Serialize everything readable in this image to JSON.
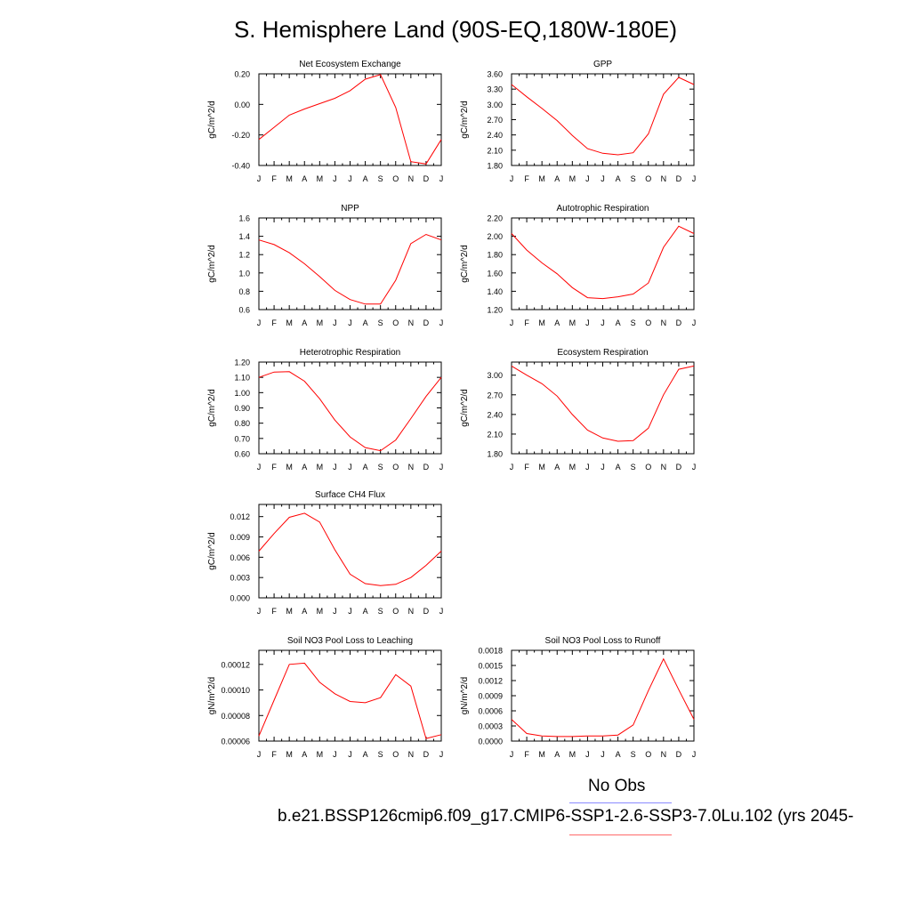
{
  "title": "S. Hemisphere Land (90S-EQ,180W-180E)",
  "legend": {
    "obs_label": "No Obs",
    "case_label": "b.e21.BSSP126cmip6.f09_g17.CMIP6-SSP1-2.6-SSP3-7.0Lu.102 (yrs 2045-",
    "obs_color": "#8a8aff",
    "model_color": "#ff6a6a"
  },
  "colors": {
    "line": "#ff0000",
    "axis": "#000000"
  },
  "chart_data": [
    {
      "type": "line",
      "title": "Net Ecosystem Exchange",
      "ylabel": "gC/m^2/d",
      "categories": [
        "J",
        "F",
        "M",
        "A",
        "M",
        "J",
        "J",
        "A",
        "S",
        "O",
        "N",
        "D",
        "J"
      ],
      "ylim": [
        -0.4,
        0.2
      ],
      "yticks": [
        "0.20",
        "0.00",
        "-0.20",
        "-0.40"
      ],
      "ytick_values": [
        0.2,
        0.0,
        -0.2,
        -0.4
      ],
      "series": [
        {
          "values": [
            -0.23,
            -0.15,
            -0.07,
            -0.03,
            0.005,
            0.04,
            0.09,
            0.165,
            0.195,
            -0.02,
            -0.375,
            -0.39,
            -0.23
          ]
        }
      ]
    },
    {
      "type": "line",
      "title": "GPP",
      "ylabel": "gC/m^2/d",
      "categories": [
        "J",
        "F",
        "M",
        "A",
        "M",
        "J",
        "J",
        "A",
        "S",
        "O",
        "N",
        "D",
        "J"
      ],
      "ylim": [
        1.8,
        3.6
      ],
      "yticks": [
        "3.60",
        "3.30",
        "3.00",
        "2.70",
        "2.40",
        "2.10",
        "1.80"
      ],
      "ytick_values": [
        3.6,
        3.3,
        3.0,
        2.7,
        2.4,
        2.1,
        1.8
      ],
      "series": [
        {
          "values": [
            3.39,
            3.15,
            2.92,
            2.68,
            2.39,
            2.13,
            2.04,
            2.01,
            2.05,
            2.42,
            3.2,
            3.53,
            3.39
          ]
        }
      ]
    },
    {
      "type": "line",
      "title": "NPP",
      "ylabel": "gC/m^2/d",
      "categories": [
        "J",
        "F",
        "M",
        "A",
        "M",
        "J",
        "J",
        "A",
        "S",
        "O",
        "N",
        "D",
        "J"
      ],
      "ylim": [
        0.6,
        1.6
      ],
      "yticks": [
        "1.6",
        "1.4",
        "1.2",
        "1.0",
        "0.8",
        "0.6"
      ],
      "ytick_values": [
        1.6,
        1.4,
        1.2,
        1.0,
        0.8,
        0.6
      ],
      "series": [
        {
          "values": [
            1.36,
            1.31,
            1.22,
            1.1,
            0.96,
            0.81,
            0.71,
            0.66,
            0.66,
            0.92,
            1.32,
            1.42,
            1.36
          ]
        }
      ]
    },
    {
      "type": "line",
      "title": "Autotrophic Respiration",
      "ylabel": "gC/m^2/d",
      "categories": [
        "J",
        "F",
        "M",
        "A",
        "M",
        "J",
        "J",
        "A",
        "S",
        "O",
        "N",
        "D",
        "J"
      ],
      "ylim": [
        1.2,
        2.2
      ],
      "yticks": [
        "2.20",
        "2.00",
        "1.80",
        "1.60",
        "1.40",
        "1.20"
      ],
      "ytick_values": [
        2.2,
        2.0,
        1.8,
        1.6,
        1.4,
        1.2
      ],
      "series": [
        {
          "values": [
            2.03,
            1.85,
            1.71,
            1.59,
            1.44,
            1.33,
            1.32,
            1.34,
            1.37,
            1.49,
            1.88,
            2.11,
            2.03
          ]
        }
      ]
    },
    {
      "type": "line",
      "title": "Heterotrophic Respiration",
      "ylabel": "gC/m^2/d",
      "categories": [
        "J",
        "F",
        "M",
        "A",
        "M",
        "J",
        "J",
        "A",
        "S",
        "O",
        "N",
        "D",
        "J"
      ],
      "ylim": [
        0.6,
        1.2
      ],
      "yticks": [
        "1.20",
        "1.10",
        "1.00",
        "0.90",
        "0.80",
        "0.70",
        "0.60"
      ],
      "ytick_values": [
        1.2,
        1.1,
        1.0,
        0.9,
        0.8,
        0.7,
        0.6
      ],
      "series": [
        {
          "values": [
            1.1,
            1.135,
            1.137,
            1.075,
            0.96,
            0.82,
            0.71,
            0.64,
            0.62,
            0.69,
            0.83,
            0.975,
            1.1
          ]
        }
      ]
    },
    {
      "type": "line",
      "title": "Ecosystem Respiration",
      "ylabel": "gC/m^2/d",
      "categories": [
        "J",
        "F",
        "M",
        "A",
        "M",
        "J",
        "J",
        "A",
        "S",
        "O",
        "N",
        "D",
        "J"
      ],
      "ylim": [
        1.8,
        3.2
      ],
      "yticks": [
        "3.00",
        "2.70",
        "2.40",
        "2.10",
        "1.80"
      ],
      "ytick_values": [
        3.0,
        2.7,
        2.4,
        2.1,
        1.8
      ],
      "series": [
        {
          "values": [
            3.14,
            3.0,
            2.87,
            2.68,
            2.4,
            2.16,
            2.04,
            1.99,
            2.0,
            2.19,
            2.7,
            3.09,
            3.14
          ]
        }
      ]
    },
    {
      "type": "line",
      "title": "Surface CH4 Flux",
      "ylabel": "gC/m^2/d",
      "categories": [
        "J",
        "F",
        "M",
        "A",
        "M",
        "J",
        "J",
        "A",
        "S",
        "O",
        "N",
        "D",
        "J"
      ],
      "ylim": [
        0.0,
        0.0138
      ],
      "yticks": [
        "0.012",
        "0.009",
        "0.006",
        "0.003",
        "0.000"
      ],
      "ytick_values": [
        0.012,
        0.009,
        0.006,
        0.003,
        0.0
      ],
      "series": [
        {
          "values": [
            0.0069,
            0.0095,
            0.0119,
            0.0125,
            0.0112,
            0.0071,
            0.0035,
            0.0021,
            0.0018,
            0.002,
            0.003,
            0.0048,
            0.0069
          ]
        }
      ]
    },
    {
      "type": "line",
      "title": "Soil NO3 Pool Loss to Leaching",
      "ylabel": "gN/m^2/d",
      "categories": [
        "J",
        "F",
        "M",
        "A",
        "M",
        "J",
        "J",
        "A",
        "S",
        "O",
        "N",
        "D",
        "J"
      ],
      "ylim": [
        6e-05,
        0.000131
      ],
      "yticks": [
        "0.00012",
        "0.00010",
        "0.00008",
        "0.00006"
      ],
      "ytick_values": [
        0.00012,
        0.0001,
        8e-05,
        6e-05
      ],
      "series": [
        {
          "values": [
            6.4e-05,
            9.2e-05,
            0.00012,
            0.000121,
            0.000106,
            9.7e-05,
            9.1e-05,
            9e-05,
            9.4e-05,
            0.000112,
            0.000103,
            6.2e-05,
            6.5e-05
          ]
        }
      ]
    },
    {
      "type": "line",
      "title": "Soil NO3 Pool Loss to Runoff",
      "ylabel": "gN/m^2/d",
      "categories": [
        "J",
        "F",
        "M",
        "A",
        "M",
        "J",
        "J",
        "A",
        "S",
        "O",
        "N",
        "D",
        "J"
      ],
      "ylim": [
        0.0,
        0.0018
      ],
      "yticks": [
        "0.0018",
        "0.0015",
        "0.0012",
        "0.0009",
        "0.0006",
        "0.0003",
        "0.0000"
      ],
      "ytick_values": [
        0.0018,
        0.0015,
        0.0012,
        0.0009,
        0.0006,
        0.0003,
        0.0
      ],
      "series": [
        {
          "values": [
            0.00043,
            0.00015,
            0.0001,
            9e-05,
            9e-05,
            0.0001,
            0.0001,
            0.00012,
            0.00032,
            0.001,
            0.00163,
            0.00102,
            0.00043
          ]
        }
      ]
    }
  ]
}
